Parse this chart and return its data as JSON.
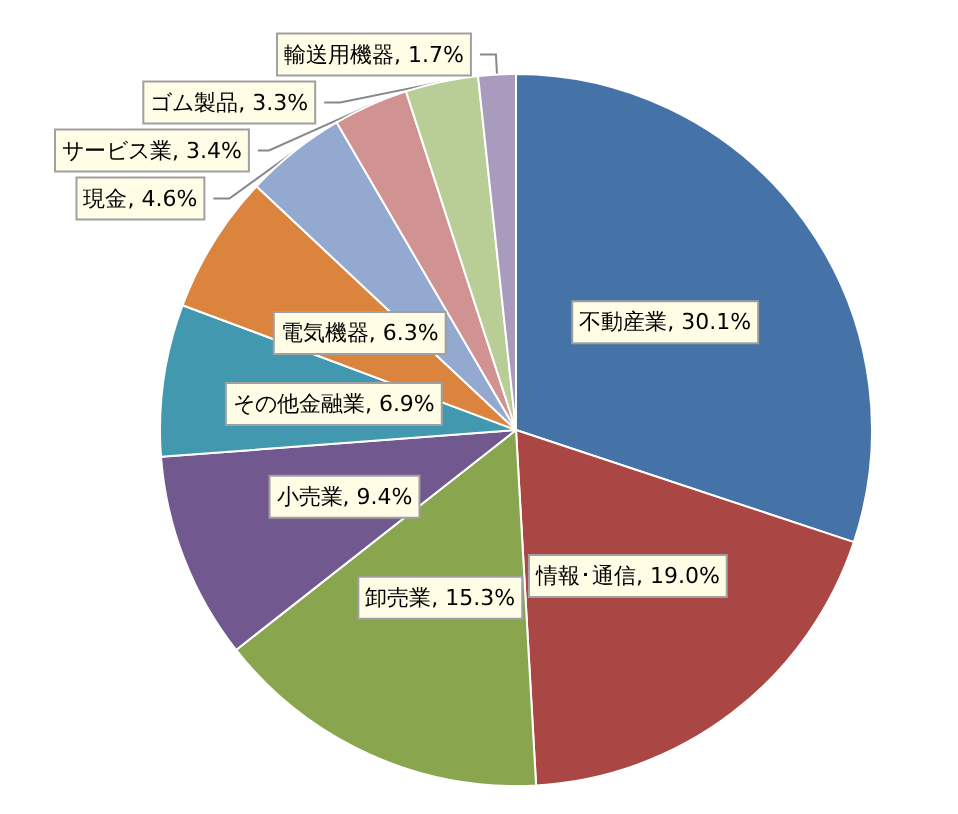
{
  "chart_data": {
    "type": "pie",
    "categories": [
      "不動産業",
      "情報･通信",
      "卸売業",
      "小売業",
      "その他金融業",
      "電気機器",
      "現金",
      "サービス業",
      "ゴム製品",
      "輸送用機器"
    ],
    "values": [
      30.1,
      19.0,
      15.3,
      9.4,
      6.9,
      6.3,
      4.6,
      3.4,
      3.3,
      1.7
    ],
    "value_labels": [
      "30.1%",
      "19.0%",
      "15.3%",
      "9.4%",
      "6.9%",
      "6.3%",
      "4.6%",
      "3.4%",
      "3.3%",
      "1.7%"
    ],
    "colors": [
      "#4572a7",
      "#aa4643",
      "#89a54e",
      "#71588f",
      "#4198af",
      "#db843d",
      "#93a9cf",
      "#d19392",
      "#b9cd96",
      "#a99bbd"
    ],
    "legend": false
  }
}
